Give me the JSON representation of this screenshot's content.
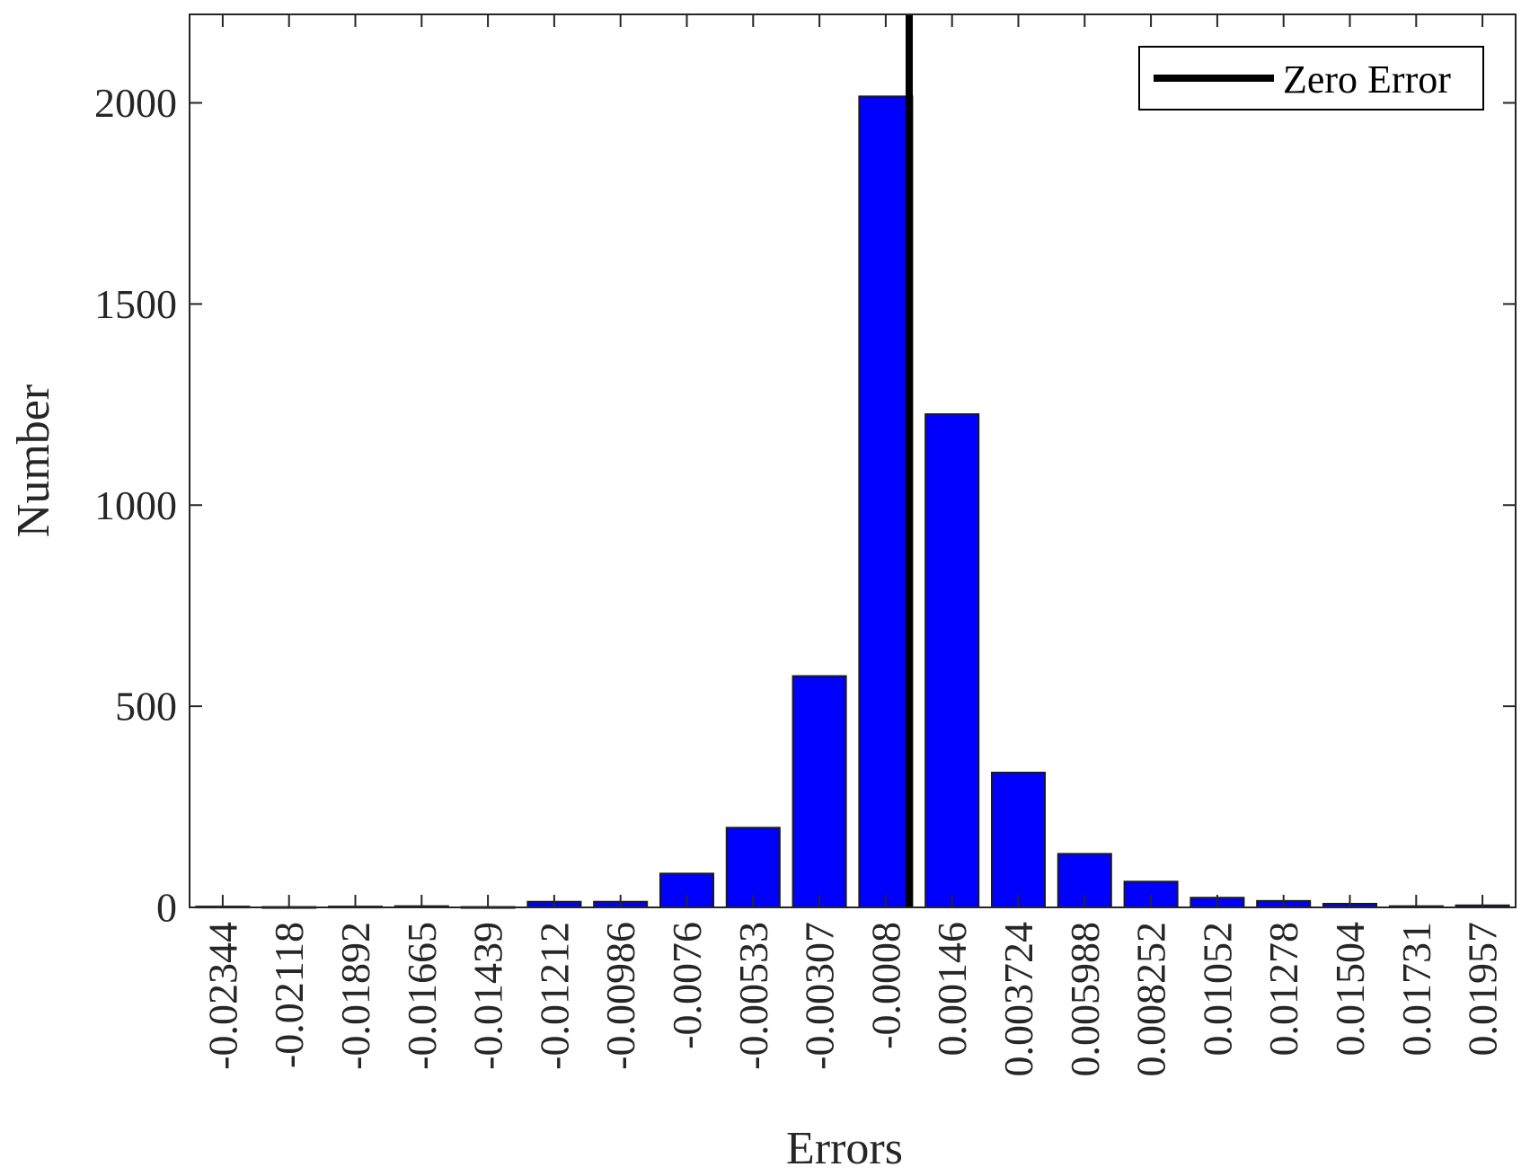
{
  "chart_data": {
    "type": "bar",
    "title": "",
    "xlabel": "Errors",
    "ylabel": "Number",
    "categories": [
      "-0.02344",
      "-0.02118",
      "-0.01892",
      "-0.01665",
      "-0.01439",
      "-0.01212",
      "-0.00986",
      "-0.0076",
      "-0.00533",
      "-0.00307",
      "-0.0008",
      "0.00146",
      "0.003724",
      "0.005988",
      "0.008252",
      "0.01052",
      "0.01278",
      "0.01504",
      "0.01731",
      "0.01957"
    ],
    "series": [
      {
        "values": [
          2,
          1,
          2,
          3,
          1,
          14,
          14,
          84,
          198,
          575,
          2016,
          1226,
          335,
          133,
          64,
          24,
          16,
          9,
          3,
          5
        ],
        "color": "#0000ff"
      }
    ],
    "ylim": [
      0,
      2220
    ],
    "yticks": [
      0,
      500,
      1000,
      1500,
      2000
    ],
    "reference_line": {
      "name": "Zero Error",
      "x": 0,
      "color": "#000000"
    },
    "legend": {
      "entries": [
        "Zero Error"
      ],
      "position": "top-right"
    },
    "grid": false,
    "box": true,
    "tick_label_rotation": -90
  }
}
